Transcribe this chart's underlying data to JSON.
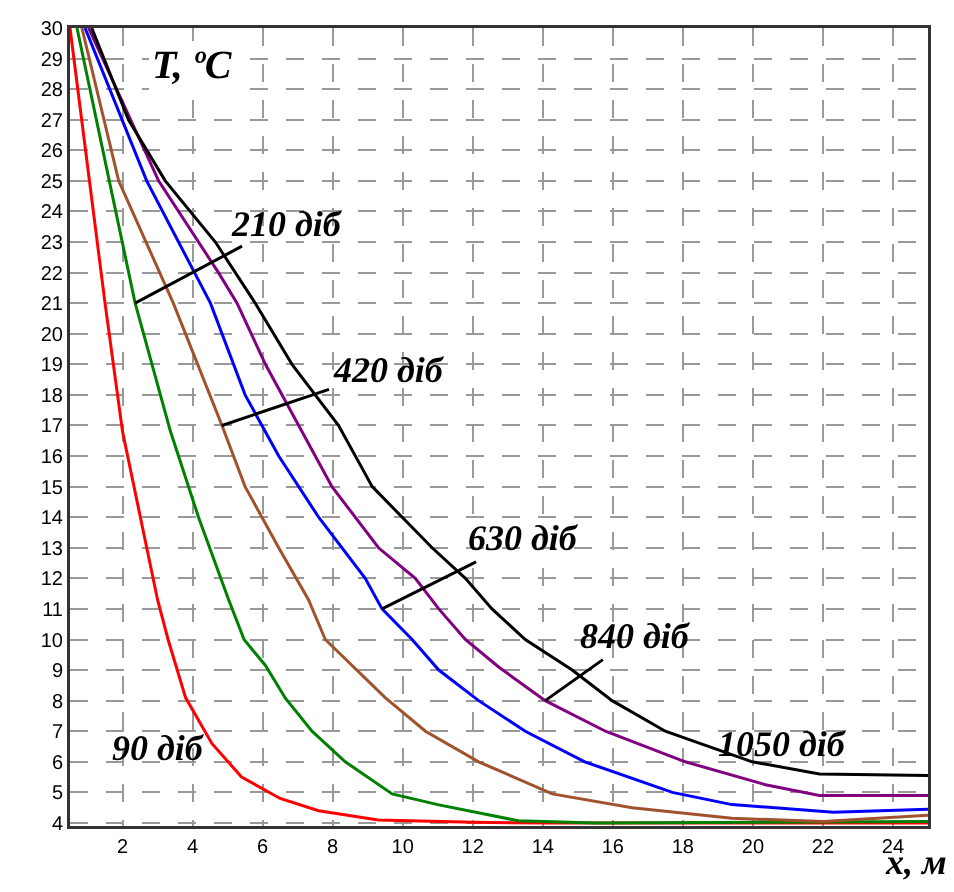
{
  "chart_data": {
    "type": "line",
    "ylabel": "T, ºC",
    "xlabel": "x, м",
    "xlim": [
      0.5,
      25
    ],
    "ylim": [
      3.9,
      30
    ],
    "xticks": [
      2,
      4,
      6,
      8,
      10,
      12,
      14,
      16,
      18,
      20,
      22,
      24
    ],
    "yticks": [
      4,
      5,
      6,
      7,
      8,
      9,
      10,
      11,
      12,
      13,
      14,
      15,
      16,
      17,
      18,
      19,
      20,
      21,
      22,
      23,
      24,
      25,
      26,
      27,
      28,
      29,
      30
    ],
    "grid": true,
    "legend": false,
    "annotations": [
      {
        "text": "210 діб",
        "x": 2.36,
        "y": 21
      },
      {
        "text": "420 діб",
        "x": 4.84,
        "y": 17
      },
      {
        "text": "630 діб",
        "x": 9.41,
        "y": 11
      },
      {
        "text": "840 діб",
        "x": 14.07,
        "y": 8
      }
    ],
    "series": [
      {
        "name": "90 діб",
        "color": "#ff0000",
        "x": [
          0.5,
          1.5,
          2.0,
          3.0,
          3.3,
          3.8,
          4.55,
          5.4,
          6.5,
          7.6,
          9.3,
          12,
          14,
          25
        ],
        "values": [
          30,
          21,
          16.8,
          11.3,
          10,
          8.1,
          6.6,
          5.5,
          4.8,
          4.4,
          4.1,
          4.02,
          4.0,
          4.0
        ]
      },
      {
        "color": "#008000",
        "x": [
          0.7,
          2.36,
          3.37,
          4.17,
          5.03,
          5.47,
          6.08,
          6.65,
          7.41,
          8.36,
          9.7,
          11,
          13.3,
          15.5,
          25
        ],
        "values": [
          30,
          21,
          16.8,
          14,
          11.3,
          10,
          9.15,
          8.08,
          7,
          6,
          4.95,
          4.6,
          4.07,
          4.0,
          4.05
        ]
      },
      {
        "color": "#a0522d",
        "x": [
          0.84,
          1.89,
          3.45,
          4.84,
          5.5,
          6.46,
          7.31,
          7.79,
          9.5,
          10.65,
          12.17,
          14.27,
          16.55,
          19.4,
          22,
          25
        ],
        "values": [
          30,
          25,
          21,
          17,
          15,
          13,
          11.3,
          10,
          8.1,
          7,
          6,
          4.95,
          4.5,
          4.15,
          4.05,
          4.25
        ]
      },
      {
        "color": "#0000ff",
        "x": [
          0.93,
          2.69,
          4.51,
          5.5,
          6.46,
          7.6,
          8.93,
          9.41,
          10.27,
          11.03,
          12.17,
          13.5,
          15.2,
          17.7,
          19.4,
          22.3,
          25
        ],
        "values": [
          30,
          25,
          21,
          18,
          16,
          14,
          12,
          11,
          10,
          9,
          8,
          7,
          6,
          5,
          4.6,
          4.35,
          4.45
        ]
      },
      {
        "color": "#800080",
        "x": [
          1.03,
          3.03,
          4.74,
          5.27,
          6.08,
          7.03,
          7.98,
          9.31,
          10.36,
          11.03,
          11.79,
          12.74,
          14.07,
          15.79,
          18.07,
          20.36,
          21.9,
          25
        ],
        "values": [
          30,
          25,
          22,
          21,
          19,
          17,
          15,
          13,
          12,
          11,
          10,
          9.1,
          8,
          7,
          6,
          5.25,
          4.9,
          4.9
        ]
      },
      {
        "name": "1050 діб",
        "color": "#000000",
        "x": [
          1.12,
          2.17,
          3.22,
          4.65,
          5.79,
          6.84,
          8.17,
          9.13,
          10.84,
          11.79,
          12.55,
          13.5,
          14.84,
          15.98,
          17.5,
          19.98,
          21.9,
          25
        ],
        "values": [
          30,
          27,
          25,
          23,
          21,
          19,
          17,
          15,
          13,
          12,
          11,
          10,
          9,
          8,
          7,
          6,
          5.6,
          5.55
        ]
      }
    ]
  }
}
